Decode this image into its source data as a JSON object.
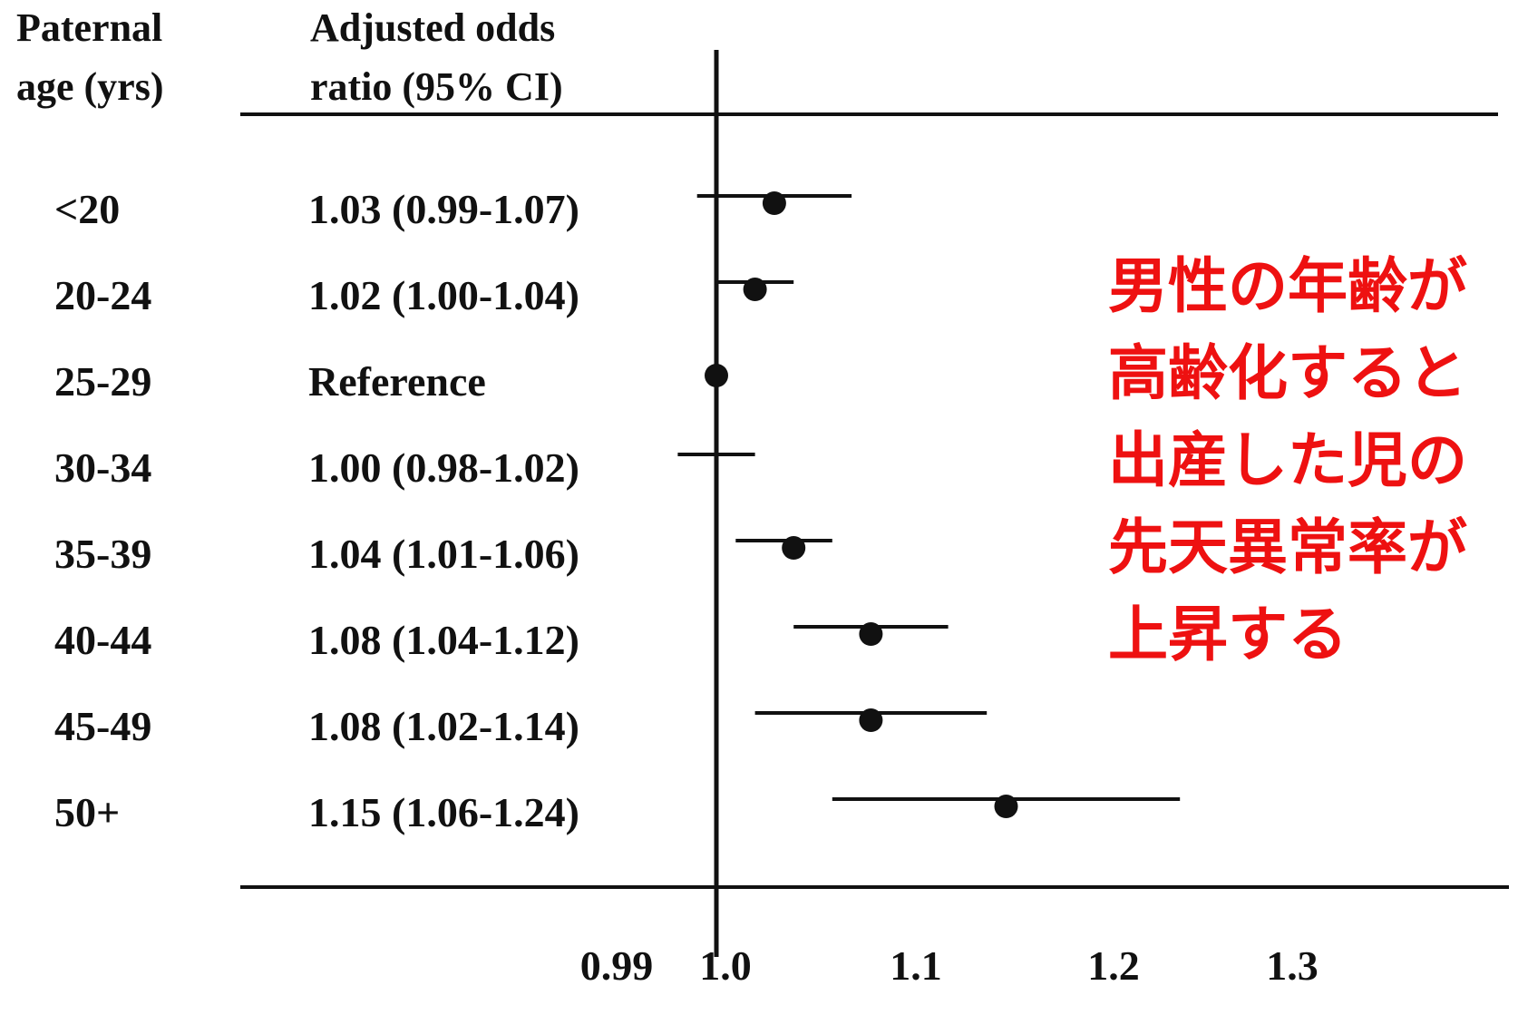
{
  "header": {
    "col1_line1": "Paternal",
    "col1_line2": "age (yrs)",
    "col2_line1": "Adjusted odds",
    "col2_line2": "ratio (95% CI)"
  },
  "annotation_lines": [
    "男性の年齢が",
    "高齢化すると",
    "出産した児の",
    "先天異常率が",
    "上昇する"
  ],
  "colors": {
    "annotation": "#ee1111",
    "ink": "#111111"
  },
  "chart_data": {
    "type": "forest",
    "title": "",
    "xlabel": "",
    "ylabel": "",
    "reference_value": 1.0,
    "x_ticks": [
      0.99,
      1.0,
      1.1,
      1.2,
      1.3
    ],
    "x_tick_labels": [
      "0.99",
      "1.0",
      "1.1",
      "1.2",
      "1.3"
    ],
    "rows": [
      {
        "group": "<20",
        "label": "1.03 (0.99-1.07)",
        "or": 1.03,
        "low": 0.99,
        "high": 1.07
      },
      {
        "group": "20-24",
        "label": "1.02 (1.00-1.04)",
        "or": 1.02,
        "low": 1.0,
        "high": 1.04
      },
      {
        "group": "25-29",
        "label": "Reference",
        "or": 1.0,
        "low": null,
        "high": null
      },
      {
        "group": "30-34",
        "label": "1.00 (0.98-1.02)",
        "or": 1.0,
        "low": 0.98,
        "high": 1.02
      },
      {
        "group": "35-39",
        "label": "1.04 (1.01-1.06)",
        "or": 1.04,
        "low": 1.01,
        "high": 1.06
      },
      {
        "group": "40-44",
        "label": "1.08 (1.04-1.12)",
        "or": 1.08,
        "low": 1.04,
        "high": 1.12
      },
      {
        "group": "45-49",
        "label": "1.08 (1.02-1.14)",
        "or": 1.08,
        "low": 1.02,
        "high": 1.14
      },
      {
        "group": "50+",
        "label": "1.15 (1.06-1.24)",
        "or": 1.15,
        "low": 1.06,
        "high": 1.24
      }
    ]
  }
}
